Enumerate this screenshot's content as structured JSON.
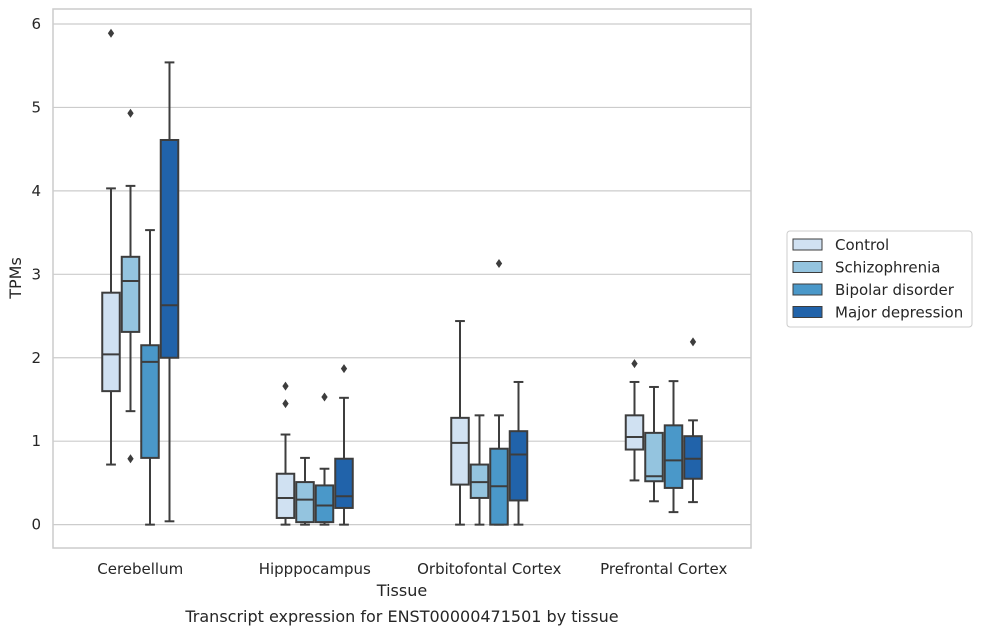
{
  "caption": "Transcript expression for ENST00000471501 by tissue",
  "chart_data": {
    "type": "box",
    "xlabel": "Tissue",
    "ylabel": "TPMs",
    "ylim": [
      -0.28,
      6.18
    ],
    "yticks": [
      0,
      1,
      2,
      3,
      4,
      5,
      6
    ],
    "grid": "horizontal",
    "legend_position": "right",
    "categories": [
      "Cerebellum",
      "Hipppocampus",
      "Orbitofontal Cortex",
      "Prefrontal Cortex"
    ],
    "series": [
      {
        "name": "Control",
        "color": "#d0e1f2",
        "boxes": [
          {
            "whislo": 0.72,
            "q1": 1.6,
            "med": 2.04,
            "q3": 2.78,
            "whishi": 4.03,
            "fliers": [
              5.89
            ]
          },
          {
            "whislo": 0.0,
            "q1": 0.08,
            "med": 0.32,
            "q3": 0.61,
            "whishi": 1.08,
            "fliers": [
              1.45,
              1.66
            ]
          },
          {
            "whislo": 0.0,
            "q1": 0.48,
            "med": 0.98,
            "q3": 1.28,
            "whishi": 2.44,
            "fliers": []
          },
          {
            "whislo": 0.53,
            "q1": 0.9,
            "med": 1.05,
            "q3": 1.31,
            "whishi": 1.71,
            "fliers": [
              1.93
            ]
          }
        ]
      },
      {
        "name": "Schizophrenia",
        "color": "#94c4df",
        "boxes": [
          {
            "whislo": 1.36,
            "q1": 2.31,
            "med": 2.92,
            "q3": 3.21,
            "whishi": 4.06,
            "fliers": [
              4.93,
              0.79
            ]
          },
          {
            "whislo": 0.0,
            "q1": 0.03,
            "med": 0.3,
            "q3": 0.51,
            "whishi": 0.8,
            "fliers": []
          },
          {
            "whislo": 0.0,
            "q1": 0.32,
            "med": 0.51,
            "q3": 0.72,
            "whishi": 1.31,
            "fliers": []
          },
          {
            "whislo": 0.28,
            "q1": 0.52,
            "med": 0.58,
            "q3": 1.1,
            "whishi": 1.65,
            "fliers": []
          }
        ]
      },
      {
        "name": "Bipolar disorder",
        "color": "#4a98c9",
        "boxes": [
          {
            "whislo": 0.0,
            "q1": 0.8,
            "med": 1.95,
            "q3": 2.15,
            "whishi": 3.53,
            "fliers": []
          },
          {
            "whislo": 0.0,
            "q1": 0.03,
            "med": 0.23,
            "q3": 0.47,
            "whishi": 0.67,
            "fliers": [
              1.53
            ]
          },
          {
            "whislo": 0.0,
            "q1": 0.0,
            "med": 0.46,
            "q3": 0.91,
            "whishi": 1.31,
            "fliers": [
              3.13
            ]
          },
          {
            "whislo": 0.15,
            "q1": 0.44,
            "med": 0.77,
            "q3": 1.19,
            "whishi": 1.72,
            "fliers": []
          }
        ]
      },
      {
        "name": "Major depression",
        "color": "#2163aa",
        "boxes": [
          {
            "whislo": 0.04,
            "q1": 2.0,
            "med": 2.63,
            "q3": 4.61,
            "whishi": 5.54,
            "fliers": []
          },
          {
            "whislo": 0.0,
            "q1": 0.2,
            "med": 0.34,
            "q3": 0.79,
            "whishi": 1.52,
            "fliers": [
              1.87
            ]
          },
          {
            "whislo": 0.0,
            "q1": 0.29,
            "med": 0.84,
            "q3": 1.12,
            "whishi": 1.71,
            "fliers": []
          },
          {
            "whislo": 0.27,
            "q1": 0.55,
            "med": 0.79,
            "q3": 1.06,
            "whishi": 1.25,
            "fliers": [
              2.19
            ]
          }
        ]
      }
    ]
  }
}
